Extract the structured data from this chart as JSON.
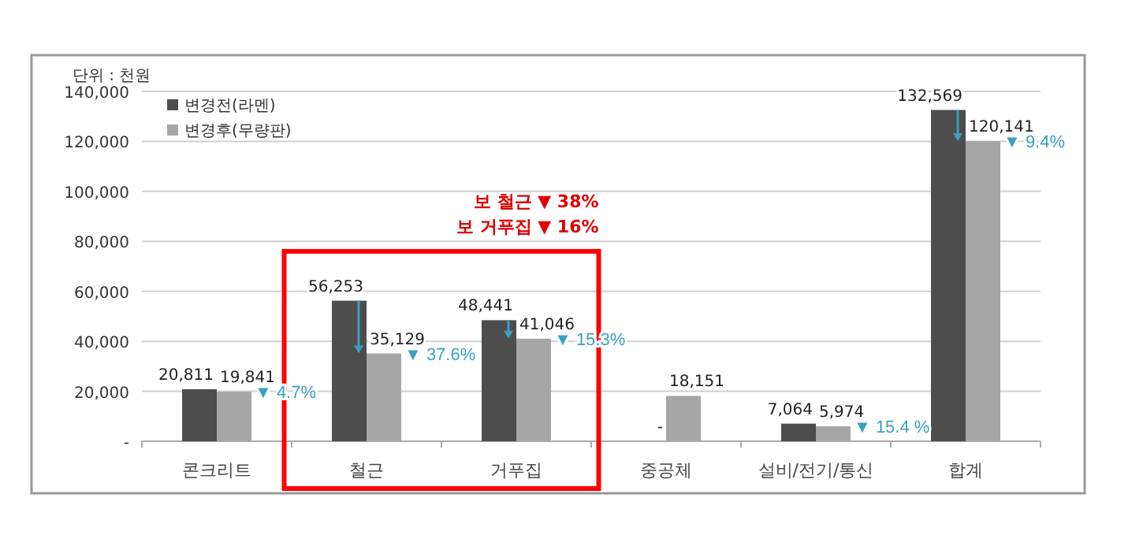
{
  "chart_data": {
    "type": "bar",
    "ylabel": "단위 : 천원",
    "categories": [
      "콘크리트",
      "철근",
      "거푸집",
      "중공체",
      "설비/전기/통신",
      "합계"
    ],
    "series": [
      {
        "name": "변경전(라멘)",
        "color": "#4d4d4d",
        "values": [
          20811,
          56253,
          48441,
          null,
          7064,
          132569
        ],
        "value_labels": [
          "20,811",
          "56,253",
          "48,441",
          "-",
          "7,064",
          "132,569"
        ]
      },
      {
        "name": "변경후(무량판)",
        "color": "#a6a6a6",
        "values": [
          19841,
          35129,
          41046,
          18151,
          5974,
          120141
        ],
        "value_labels": [
          "19,841",
          "35,129",
          "41,046",
          "18,151",
          "5,974",
          "120,141"
        ]
      }
    ],
    "ylim": [
      0,
      140000
    ],
    "yticks": [
      {
        "value": 0,
        "label": "-"
      },
      {
        "value": 20000,
        "label": "20,000"
      },
      {
        "value": 40000,
        "label": "40,000"
      },
      {
        "value": 60000,
        "label": "60,000"
      },
      {
        "value": 80000,
        "label": "80,000"
      },
      {
        "value": 100000,
        "label": "100,000"
      },
      {
        "value": 120000,
        "label": "120,000"
      },
      {
        "value": 140000,
        "label": "140,000"
      }
    ],
    "grid": "y",
    "legend": "top left",
    "annotations": [
      {
        "text": "▼ 4.7%",
        "x": "콘크리트",
        "y": 19841
      },
      {
        "text": "▼ 37.6%",
        "x": "철근",
        "y": 35129
      },
      {
        "text": "▼ 15.3%",
        "x": "거푸집",
        "y": 41046
      },
      {
        "text": "▼ 15.4 %",
        "x": "설비/전기/통신",
        "y": 5974
      },
      {
        "text": "▼ 9.4%",
        "x": "합계",
        "y": 120141
      },
      "보 철근 ▼ 38%",
      "보 거푸집 ▼ 16%"
    ]
  }
}
